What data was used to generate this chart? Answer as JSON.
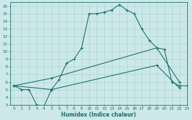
{
  "xlabel": "Humidex (Indice chaleur)",
  "background_color": "#cce8e8",
  "grid_color": "#aad4d4",
  "line_color": "#1a6e6e",
  "xlim": [
    -0.5,
    23
  ],
  "ylim": [
    3,
    16.5
  ],
  "xticks": [
    0,
    1,
    2,
    3,
    4,
    5,
    6,
    7,
    8,
    9,
    10,
    11,
    12,
    13,
    14,
    15,
    16,
    17,
    18,
    19,
    20,
    21,
    22,
    23
  ],
  "yticks": [
    3,
    4,
    5,
    6,
    7,
    8,
    9,
    10,
    11,
    12,
    13,
    14,
    15,
    16
  ],
  "curve1_x": [
    0,
    1,
    2,
    3,
    4,
    5,
    6,
    7,
    8,
    9,
    10,
    11,
    12,
    13,
    14,
    15,
    16,
    17,
    18,
    19,
    20,
    21,
    22,
    23
  ],
  "curve1_y": [
    5.5,
    5.0,
    5.0,
    3.0,
    2.8,
    5.0,
    6.3,
    8.5,
    9.0,
    10.5,
    15.0,
    15.0,
    15.2,
    15.5,
    16.2,
    15.5,
    15.0,
    13.0,
    11.5,
    10.5,
    10.3,
    6.0,
    5.5,
    5.5
  ],
  "curve2_x": [
    0,
    5,
    19,
    22
  ],
  "curve2_y": [
    5.5,
    6.5,
    10.5,
    6.0
  ],
  "curve3_x": [
    0,
    5,
    19,
    22
  ],
  "curve3_y": [
    5.5,
    5.0,
    8.2,
    5.2
  ]
}
